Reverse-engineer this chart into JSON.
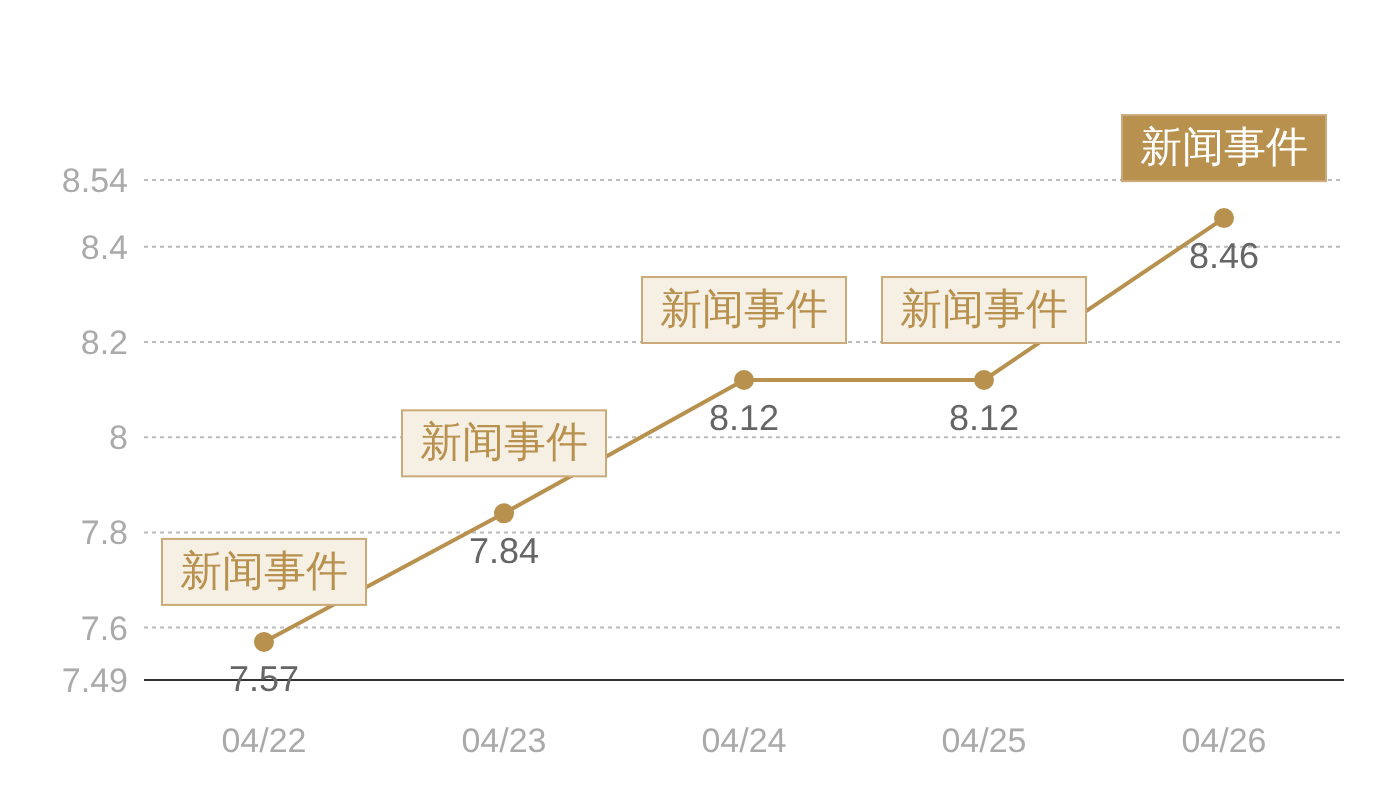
{
  "chart_data": {
    "type": "line",
    "categories": [
      "04/22",
      "04/23",
      "04/24",
      "04/25",
      "04/26"
    ],
    "series": [
      {
        "color": "#b8914f",
        "values": [
          7.57,
          7.84,
          8.12,
          8.12,
          8.46
        ]
      }
    ],
    "ylim": [
      7.49,
      8.54
    ],
    "yticks": [
      7.49,
      7.6,
      7.8,
      8,
      8.2,
      8.4,
      8.54
    ],
    "grid": "y",
    "marker": "circle",
    "line_style": "solid",
    "data_labels": true,
    "annotations": [
      {
        "text": "新闻事件",
        "x": "04/22",
        "y": 7.57
      },
      {
        "text": "新闻事件",
        "x": "04/23",
        "y": 7.84
      },
      {
        "text": "新闻事件",
        "x": "04/24",
        "y": 8.12
      },
      {
        "text": "新闻事件",
        "x": "04/25",
        "y": 8.12
      },
      {
        "text": "新闻事件",
        "x": "04/26",
        "y": 8.46
      }
    ]
  }
}
